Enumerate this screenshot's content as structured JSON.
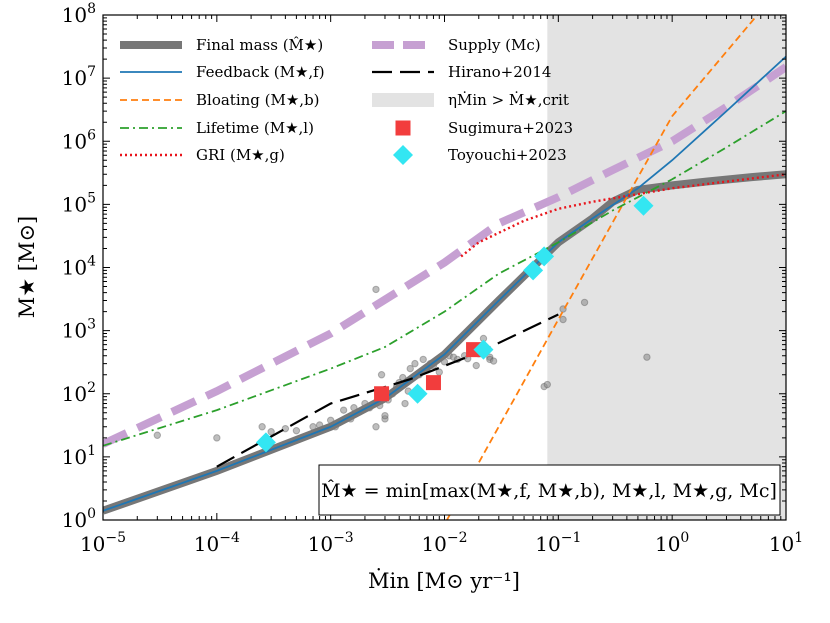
{
  "chart_data": {
    "type": "line",
    "xscale": "log",
    "yscale": "log",
    "xlim": [
      1e-05,
      10
    ],
    "ylim": [
      1,
      100000000
    ],
    "xlabel": "Ṁin [M⊙ yr⁻¹]",
    "ylabel": "M★ [M⊙]",
    "x_tick_labels": [
      {
        "base": "10",
        "exp": "−5",
        "value": 1e-05
      },
      {
        "base": "10",
        "exp": "−4",
        "value": 0.0001
      },
      {
        "base": "10",
        "exp": "−3",
        "value": 0.001
      },
      {
        "base": "10",
        "exp": "−2",
        "value": 0.01
      },
      {
        "base": "10",
        "exp": "−1",
        "value": 0.1
      },
      {
        "base": "10",
        "exp": "0",
        "value": 1
      },
      {
        "base": "10",
        "exp": "1",
        "value": 10
      }
    ],
    "y_tick_labels": [
      {
        "base": "10",
        "exp": "0",
        "value": 1
      },
      {
        "base": "10",
        "exp": "1",
        "value": 10
      },
      {
        "base": "10",
        "exp": "2",
        "value": 100
      },
      {
        "base": "10",
        "exp": "3",
        "value": 1000
      },
      {
        "base": "10",
        "exp": "4",
        "value": 10000
      },
      {
        "base": "10",
        "exp": "5",
        "value": 100000
      },
      {
        "base": "10",
        "exp": "6",
        "value": 1000000
      },
      {
        "base": "10",
        "exp": "7",
        "value": 10000000
      },
      {
        "base": "10",
        "exp": "8",
        "value": 100000000
      }
    ],
    "shaded_region": {
      "x_from": 0.08,
      "x_to": 10,
      "color": "#e3e3e3",
      "label": "ηṀin > Ṁ★,crit"
    },
    "legend_placement": "top, two columns",
    "series": [
      {
        "name": "Final mass (M̂★)",
        "style": "solid-thick",
        "color": "#777777",
        "x": [
          1e-05,
          0.0001,
          0.001,
          0.003,
          0.01,
          0.03,
          0.1,
          0.2,
          0.3,
          0.5,
          1,
          2,
          5,
          10
        ],
        "y": [
          1.4,
          6,
          30,
          85,
          420,
          3000,
          25000,
          60000,
          110000,
          170000,
          200000,
          230000,
          270000,
          300000
        ]
      },
      {
        "name": "Feedback (M★,f)",
        "style": "solid",
        "color": "#1f77b4",
        "x": [
          1e-05,
          0.0001,
          0.001,
          0.003,
          0.01,
          0.03,
          0.1,
          0.2,
          0.5,
          1,
          3,
          10
        ],
        "y": [
          1.4,
          6,
          30,
          85,
          420,
          3000,
          25000,
          60000,
          180000,
          500000,
          3000000,
          22000000
        ]
      },
      {
        "name": "Bloating (M★,b)",
        "style": "dashed",
        "color": "#ff7f0e",
        "x": [
          0.0105,
          0.1,
          1,
          5.6
        ],
        "y": [
          1,
          1500,
          2500000,
          100000000
        ]
      },
      {
        "name": "Lifetime (M★,l)",
        "style": "dashdot",
        "color": "#2ca02c",
        "x": [
          1e-05,
          0.0001,
          0.001,
          0.003,
          0.01,
          0.03,
          0.1,
          0.3,
          1,
          3,
          10
        ],
        "y": [
          15,
          55,
          250,
          550,
          2000,
          8000,
          25000,
          80000,
          250000,
          800000,
          3000000
        ]
      },
      {
        "name": "GRI (M★,g)",
        "style": "dotted",
        "color": "#e8141b",
        "x": [
          0.014,
          0.02,
          0.05,
          0.1,
          0.2,
          0.5,
          1,
          10
        ],
        "y": [
          15000,
          25000,
          55000,
          85000,
          110000,
          145000,
          180000,
          300000
        ]
      },
      {
        "name": "Supply (Mc)",
        "style": "dashed-thick",
        "color": "#c6a0d2",
        "x": [
          1e-05,
          0.0001,
          0.001,
          0.01,
          0.03,
          0.1,
          0.3,
          1,
          3,
          10
        ],
        "y": [
          16,
          110,
          900,
          12000,
          50000,
          130000,
          350000,
          1000000,
          3500000,
          15000000
        ]
      },
      {
        "name": "Hirano+2014",
        "style": "long-dash",
        "color": "#000000",
        "x": [
          0.0001,
          0.001,
          0.005,
          0.02,
          0.1
        ],
        "y": [
          7,
          70,
          170,
          450,
          1800
        ]
      }
    ],
    "scatter_series": [
      {
        "name": "Sugimura+2023",
        "marker": "square",
        "color": "#f23d3d",
        "x": [
          0.0028,
          0.008,
          0.018
        ],
        "y": [
          100,
          150,
          500
        ]
      },
      {
        "name": "Toyouchi+2023",
        "marker": "diamond",
        "color": "#33e6f2",
        "x": [
          0.00027,
          0.0058,
          0.022,
          0.06,
          0.075,
          0.56
        ],
        "y": [
          17,
          100,
          500,
          9000,
          15000,
          95000
        ]
      },
      {
        "name": "",
        "marker": "circle",
        "color": "#888888",
        "x": [
          3e-05,
          0.0001,
          0.00025,
          0.0003,
          0.0004,
          0.0005,
          0.0007,
          0.0008,
          0.001,
          0.0011,
          0.0013,
          0.0015,
          0.0016,
          0.0018,
          0.002,
          0.0022,
          0.0025,
          0.0027,
          0.003,
          0.0032,
          0.0035,
          0.0038,
          0.004,
          0.0043,
          0.0045,
          0.0048,
          0.005,
          0.0055,
          0.006,
          0.0065,
          0.007,
          0.0075,
          0.008,
          0.009,
          0.01,
          0.011,
          0.012,
          0.013,
          0.015,
          0.016,
          0.018,
          0.019,
          0.02,
          0.022,
          0.025,
          0.025,
          0.027,
          0.0028,
          0.075,
          0.11,
          0.11,
          0.17,
          0.6,
          0.08,
          0.0025,
          0.003
        ],
        "y": [
          22,
          20,
          30,
          25,
          28,
          26,
          30,
          32,
          38,
          30,
          55,
          40,
          60,
          52,
          70,
          60,
          4500,
          65,
          40,
          80,
          100,
          130,
          150,
          180,
          70,
          110,
          250,
          300,
          200,
          350,
          250,
          300,
          280,
          220,
          320,
          400,
          380,
          350,
          400,
          360,
          550,
          280,
          430,
          750,
          380,
          350,
          330,
          200,
          130,
          2200,
          1500,
          2800,
          380,
          140,
          30,
          45
        ]
      }
    ],
    "legend": [
      {
        "label": "Final mass (M̂★)",
        "series": 0
      },
      {
        "label": "Feedback (M★,f)",
        "series": 1
      },
      {
        "label": "Bloating (M★,b)",
        "series": 2
      },
      {
        "label": "Lifetime (M★,l)",
        "series": 3
      },
      {
        "label": "GRI (M★,g)",
        "series": 4
      },
      {
        "label": "Supply (Mc)",
        "series": 5
      },
      {
        "label": "Hirano+2014",
        "series": 6
      },
      {
        "label": "ηṀin > Ṁ★,crit",
        "region": true
      },
      {
        "label": "Sugimura+2023",
        "scatter": 0
      },
      {
        "label": "Toyouchi+2023",
        "scatter": 1
      }
    ],
    "annotation": "M̂★ = min[max(M★,f, M★,b), M★,l, M★,g, Mc]"
  }
}
